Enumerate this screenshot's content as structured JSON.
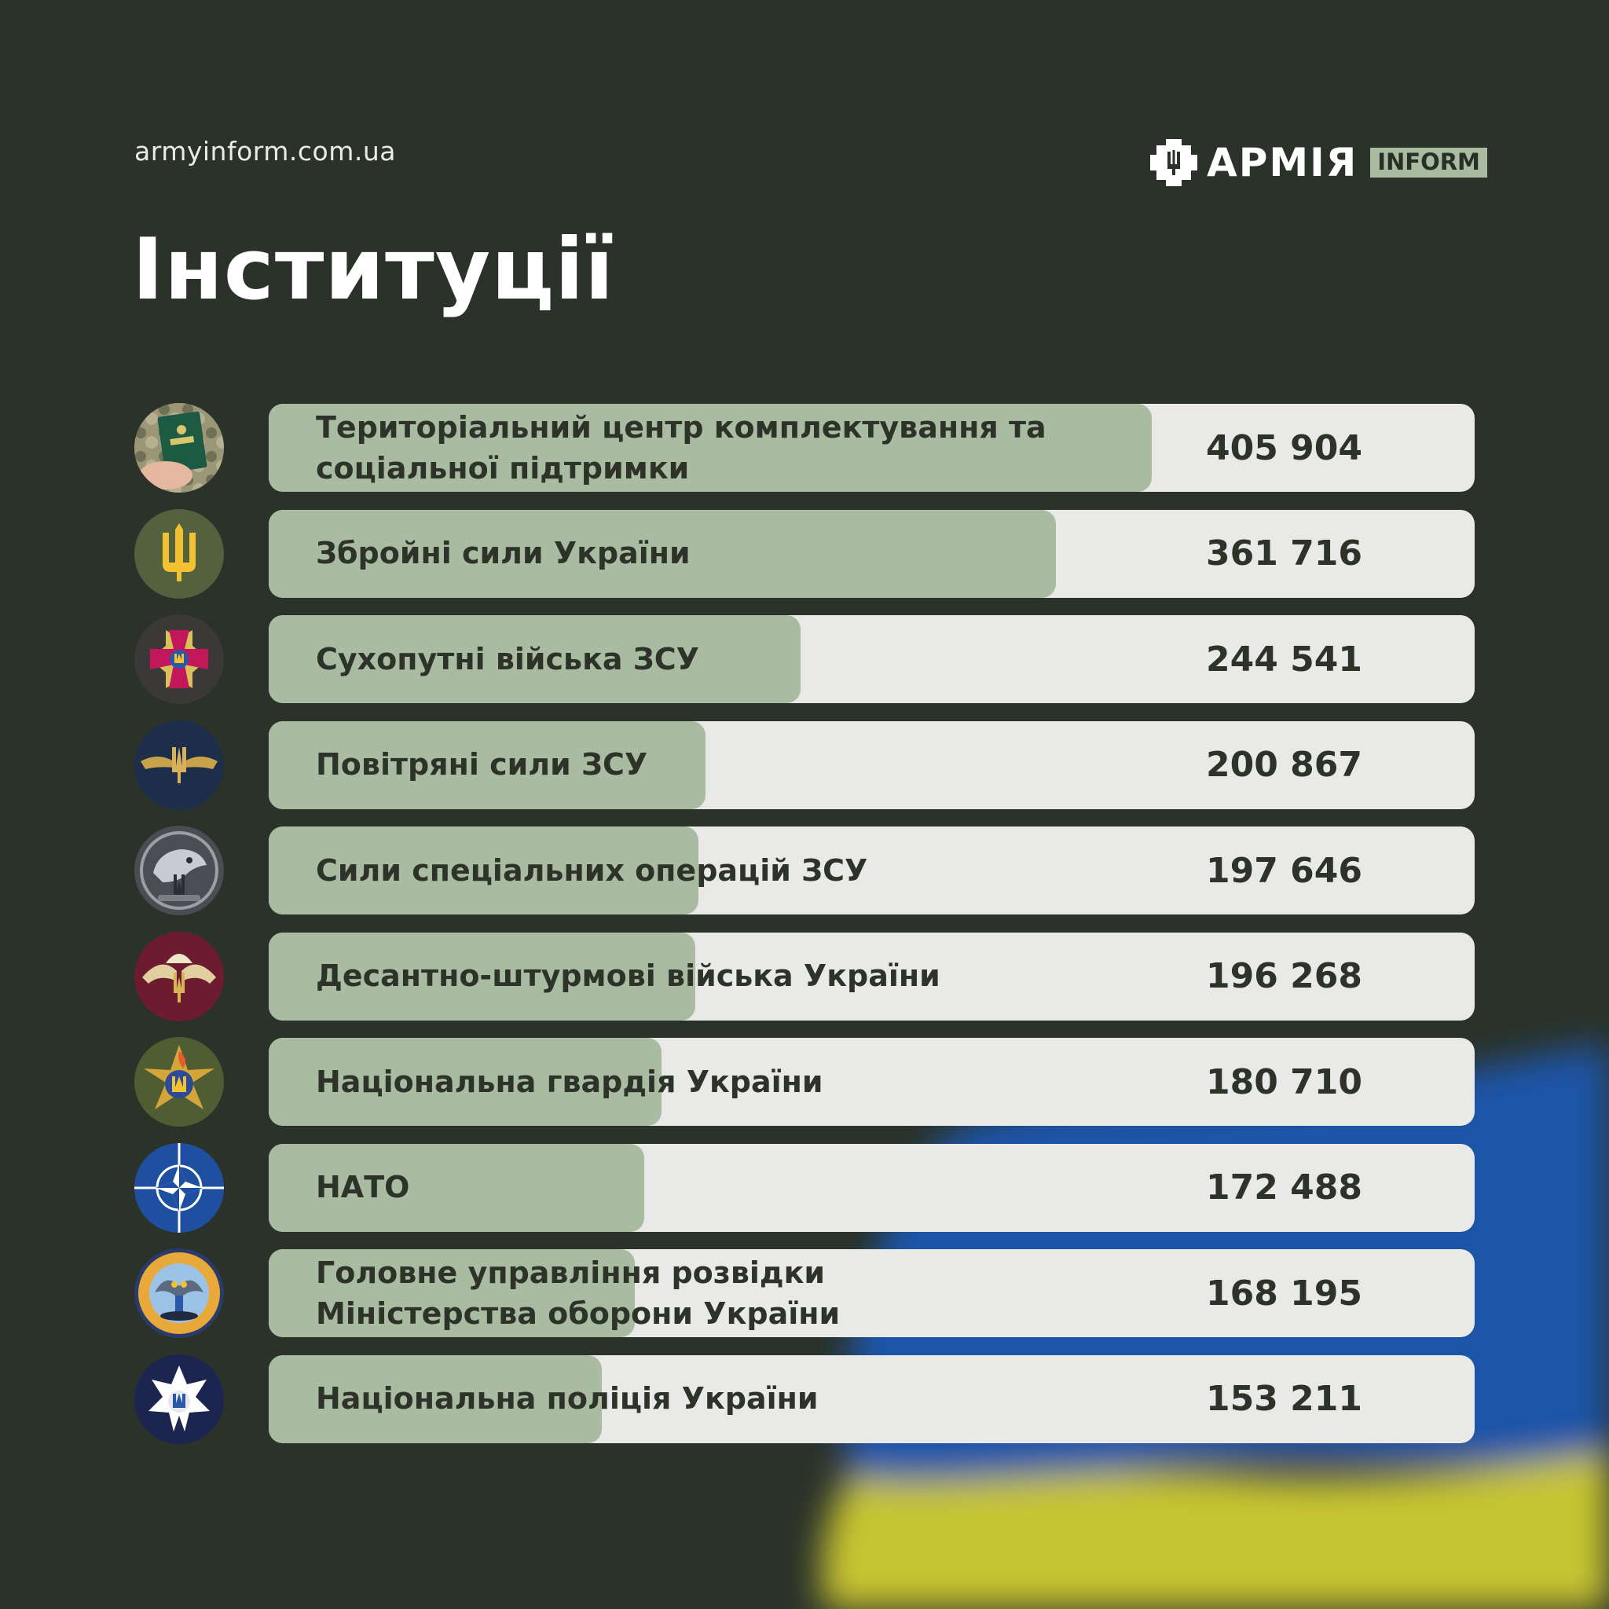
{
  "site": "armyinform.com.ua",
  "logo": {
    "word": "АРМІЯ",
    "tag": "INFORM"
  },
  "title": "Інституції",
  "colors": {
    "background": "#2b3229",
    "bar_fill": "#a9bca2",
    "bar_track": "#e9e9e7",
    "text": "#2d3329"
  },
  "chart_data": {
    "type": "bar",
    "orientation": "horizontal",
    "title": "Інституції",
    "xlim": [
      0,
      405904
    ],
    "categories": [
      "Територіальний центр комплектування та\nсоціальної підтримки",
      "Збройні сили України",
      "Сухопутні війська ЗСУ",
      "Повітряні сили ЗСУ",
      "Сили спеціальних операцій ЗСУ",
      "Десантно-штурмові війська України",
      "Національна гвардія України",
      "НАТО",
      "Головне управління розвідки\nМіністерства оборони України",
      "Національна поліція України"
    ],
    "values": [
      405904,
      361716,
      244541,
      200867,
      197646,
      196268,
      180710,
      172488,
      168195,
      153211
    ],
    "value_labels": [
      "405 904",
      "361 716",
      "244 541",
      "200 867",
      "197 646",
      "196 268",
      "180 710",
      "172 488",
      "168 195",
      "153 211"
    ],
    "icons": [
      "military-id-icon",
      "trident-icon",
      "ground-forces-cross-icon",
      "air-force-wings-icon",
      "special-operations-wolf-icon",
      "air-assault-parachute-icon",
      "national-guard-emblem-icon",
      "nato-compass-icon",
      "intelligence-owl-icon",
      "national-police-star-icon"
    ]
  }
}
